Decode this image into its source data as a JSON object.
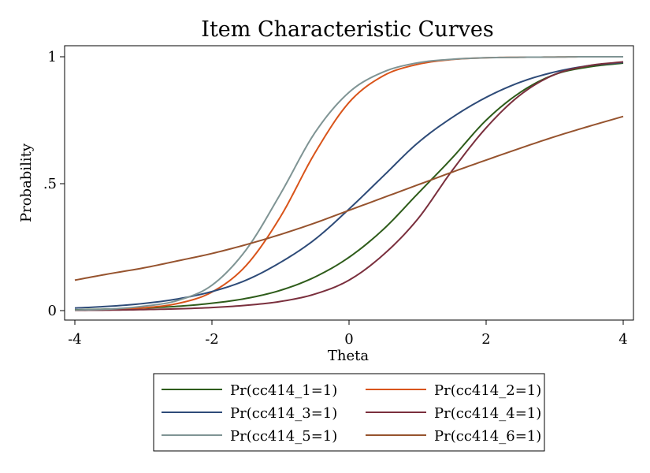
{
  "chart_data": {
    "type": "line",
    "title": "Item Characteristic Curves",
    "xlabel": "Theta",
    "ylabel": "Probability",
    "xlim": [
      -4,
      4
    ],
    "ylim": [
      0,
      1
    ],
    "x_ticks": [
      {
        "value": -4,
        "label": "-4"
      },
      {
        "value": -2,
        "label": "-2"
      },
      {
        "value": 0,
        "label": "0"
      },
      {
        "value": 2,
        "label": "2"
      },
      {
        "value": 4,
        "label": "4"
      }
    ],
    "y_ticks": [
      {
        "value": 0,
        "label": "0"
      },
      {
        "value": 0.5,
        "label": ".5"
      },
      {
        "value": 1,
        "label": "1"
      }
    ],
    "legend_placement": "bottom",
    "legend_columns": 2,
    "series": [
      {
        "name": "Pr(cc414_1=1)",
        "color": "#2e5c1a",
        "x": [
          -4,
          -3.5,
          -3,
          -2.5,
          -2,
          -1.5,
          -1,
          -0.5,
          0,
          0.5,
          1,
          1.5,
          2,
          2.5,
          3,
          3.5,
          4
        ],
        "values": [
          0.003,
          0.006,
          0.01,
          0.017,
          0.029,
          0.048,
          0.08,
          0.132,
          0.21,
          0.32,
          0.46,
          0.6,
          0.75,
          0.86,
          0.93,
          0.96,
          0.975
        ]
      },
      {
        "name": "Pr(cc414_2=1)",
        "color": "#d9541a",
        "x": [
          -4,
          -3.5,
          -3,
          -2.5,
          -2,
          -1.5,
          -1,
          -0.5,
          0,
          0.5,
          1,
          1.5,
          2,
          2.5,
          3,
          3.5,
          4
        ],
        "values": [
          0.001,
          0.004,
          0.011,
          0.028,
          0.073,
          0.178,
          0.37,
          0.62,
          0.82,
          0.925,
          0.97,
          0.989,
          0.996,
          0.998,
          0.999,
          1.0,
          1.0
        ]
      },
      {
        "name": "Pr(cc414_3=1)",
        "color": "#2e4b78",
        "x": [
          -4,
          -3.5,
          -3,
          -2.5,
          -2,
          -1.5,
          -1,
          -0.5,
          0,
          0.5,
          1,
          1.5,
          2,
          2.5,
          3,
          3.5,
          4
        ],
        "values": [
          0.01,
          0.017,
          0.028,
          0.046,
          0.075,
          0.12,
          0.19,
          0.28,
          0.4,
          0.53,
          0.66,
          0.76,
          0.84,
          0.9,
          0.94,
          0.965,
          0.978
        ]
      },
      {
        "name": "Pr(cc414_4=1)",
        "color": "#7a2f3d",
        "x": [
          -4,
          -3.5,
          -3,
          -2.5,
          -2,
          -1.5,
          -1,
          -0.5,
          0,
          0.5,
          1,
          1.5,
          2,
          2.5,
          3,
          3.5,
          4
        ],
        "values": [
          0.001,
          0.002,
          0.004,
          0.007,
          0.012,
          0.021,
          0.036,
          0.065,
          0.12,
          0.22,
          0.36,
          0.55,
          0.72,
          0.85,
          0.93,
          0.965,
          0.98
        ]
      },
      {
        "name": "Pr(cc414_5=1)",
        "color": "#7f9494",
        "x": [
          -4,
          -3.5,
          -3,
          -2.5,
          -2,
          -1.5,
          -1,
          -0.5,
          0,
          0.5,
          1,
          1.5,
          2,
          2.5,
          3,
          3.5,
          4
        ],
        "values": [
          0.002,
          0.006,
          0.017,
          0.04,
          0.1,
          0.24,
          0.46,
          0.7,
          0.86,
          0.94,
          0.976,
          0.99,
          0.996,
          0.998,
          0.999,
          1.0,
          1.0
        ]
      },
      {
        "name": "Pr(cc414_6=1)",
        "color": "#96532e",
        "x": [
          -4,
          -3.5,
          -3,
          -2.5,
          -2,
          -1.5,
          -1,
          -0.5,
          0,
          0.5,
          1,
          1.5,
          2,
          2.5,
          3,
          3.5,
          4
        ],
        "values": [
          0.12,
          0.145,
          0.168,
          0.196,
          0.225,
          0.26,
          0.3,
          0.345,
          0.395,
          0.445,
          0.495,
          0.545,
          0.593,
          0.64,
          0.685,
          0.726,
          0.765
        ]
      }
    ]
  }
}
